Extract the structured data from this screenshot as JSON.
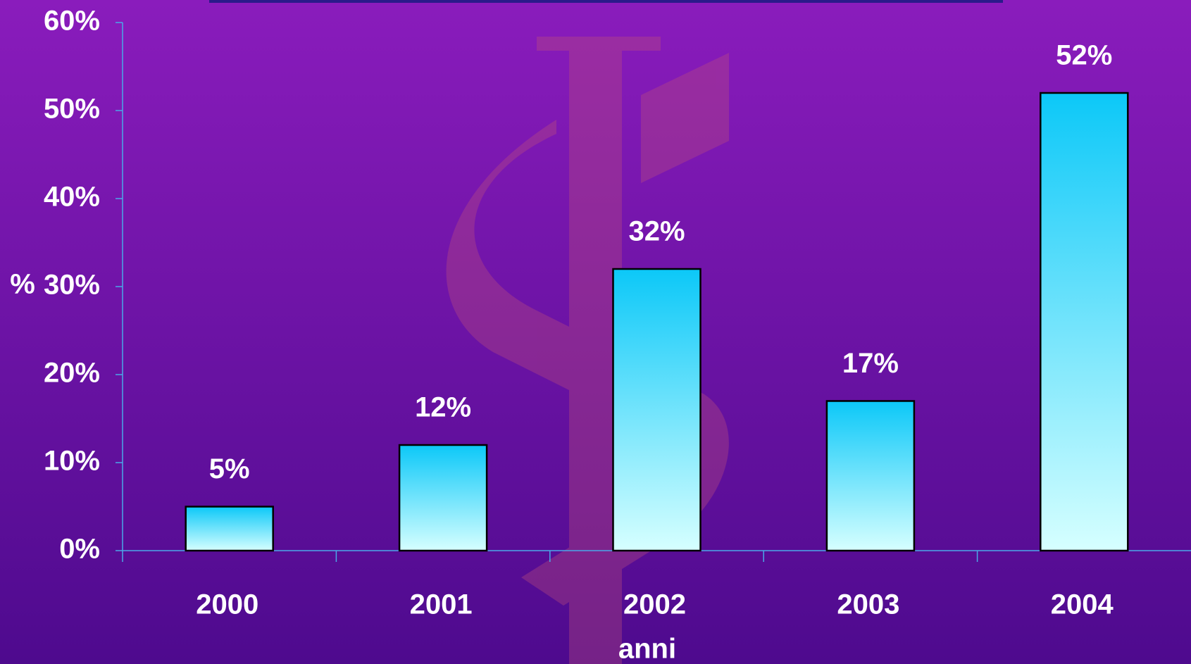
{
  "chart_data": {
    "type": "bar",
    "categories": [
      "2000",
      "2001",
      "2002",
      "2003",
      "2004"
    ],
    "values": [
      5,
      12,
      32,
      17,
      52
    ],
    "value_labels": [
      "5%",
      "12%",
      "32%",
      "17%",
      "52%"
    ],
    "ylim": [
      0,
      60
    ],
    "yticks": [
      {
        "value": 0,
        "label": "0%"
      },
      {
        "value": 10,
        "label": "10%"
      },
      {
        "value": 20,
        "label": "20%"
      },
      {
        "value": 30,
        "label": "30%"
      },
      {
        "value": 40,
        "label": "40%"
      },
      {
        "value": 50,
        "label": "50%"
      },
      {
        "value": 60,
        "label": "60%"
      }
    ],
    "y_label": "%",
    "x_label": "anni",
    "colors": [
      "#0cc8f8",
      "#d6ffff"
    ]
  }
}
